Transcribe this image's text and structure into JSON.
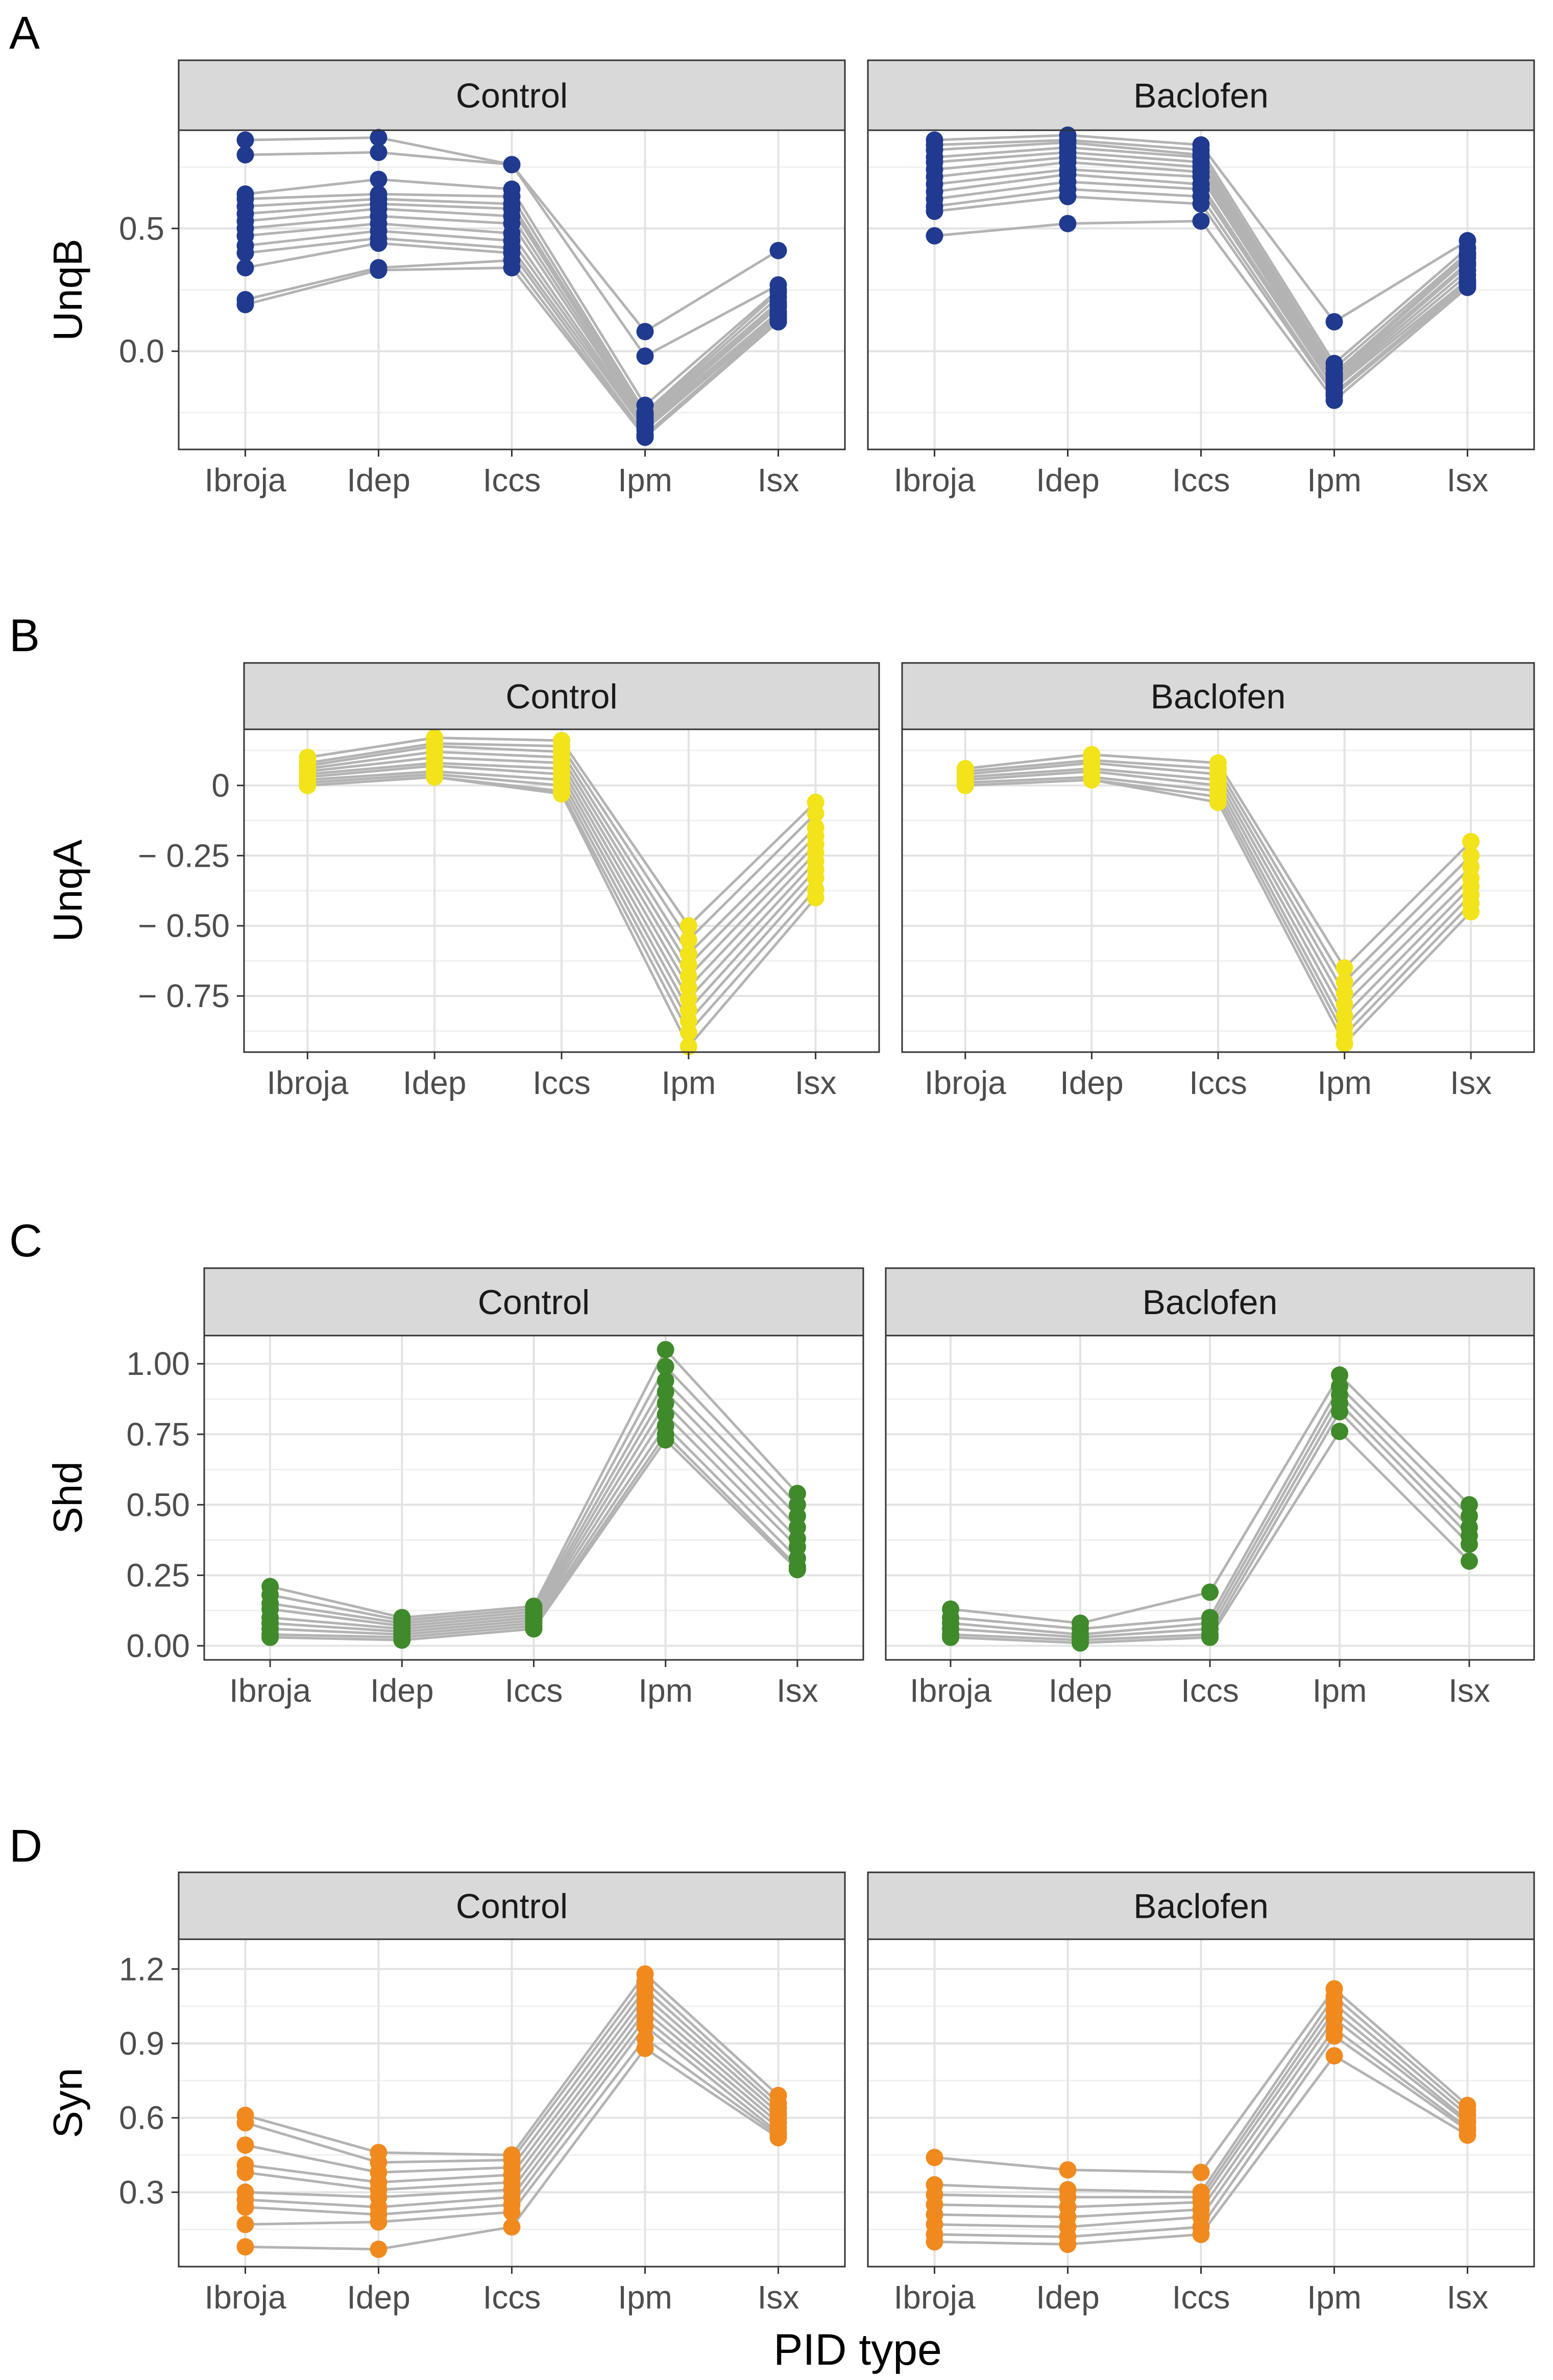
{
  "figure": {
    "x_axis_title": "PID type",
    "panels": [
      {
        "letter": "A",
        "ylabel": "UnqB"
      },
      {
        "letter": "B",
        "ylabel": "UnqA"
      },
      {
        "letter": "C",
        "ylabel": "Shd"
      },
      {
        "letter": "D",
        "ylabel": "Syn"
      }
    ]
  },
  "colors": {
    "UnqB": "#1f3a8f",
    "UnqA": "#f2e31a",
    "Shd": "#3f8a2a",
    "Syn": "#f08a1e",
    "lines": "#b3b3b3",
    "strip_bg": "#d9d9d9",
    "grid_major": "#e3e3e3",
    "grid_minor": "#f0f0f0"
  },
  "chart_data": [
    {
      "type": "line",
      "panel": "A",
      "ylabel": "UnqB",
      "xlabel": "PID type",
      "categories": [
        "Ibroja",
        "Idep",
        "Iccs",
        "Ipm",
        "Isx"
      ],
      "ylim": [
        -0.4,
        0.9
      ],
      "yticks": [
        0.0,
        0.5
      ],
      "ytick_labels": [
        "0.0",
        "0.5"
      ],
      "facets": [
        {
          "name": "Control",
          "series": [
            [
              0.86,
              0.87,
              0.76,
              0.08,
              0.41
            ],
            [
              0.8,
              0.81,
              0.76,
              -0.02,
              0.27
            ],
            [
              0.64,
              0.7,
              0.66,
              -0.22,
              0.25
            ],
            [
              0.62,
              0.64,
              0.63,
              -0.25,
              0.24
            ],
            [
              0.59,
              0.62,
              0.6,
              -0.26,
              0.22
            ],
            [
              0.56,
              0.6,
              0.58,
              -0.27,
              0.2
            ],
            [
              0.53,
              0.58,
              0.55,
              -0.28,
              0.19
            ],
            [
              0.5,
              0.55,
              0.52,
              -0.29,
              0.18
            ],
            [
              0.47,
              0.52,
              0.48,
              -0.3,
              0.16
            ],
            [
              0.43,
              0.49,
              0.45,
              -0.31,
              0.15
            ],
            [
              0.4,
              0.46,
              0.42,
              -0.32,
              0.14
            ],
            [
              0.34,
              0.44,
              0.4,
              -0.34,
              0.13
            ],
            [
              0.21,
              0.34,
              0.37,
              -0.35,
              0.12
            ],
            [
              0.19,
              0.33,
              0.34,
              -0.35,
              0.12
            ]
          ]
        },
        {
          "name": "Baclofen",
          "series": [
            [
              0.86,
              0.88,
              0.84,
              0.12,
              0.45
            ],
            [
              0.84,
              0.86,
              0.82,
              -0.05,
              0.42
            ],
            [
              0.82,
              0.85,
              0.8,
              -0.07,
              0.4
            ],
            [
              0.79,
              0.83,
              0.79,
              -0.09,
              0.39
            ],
            [
              0.77,
              0.81,
              0.77,
              -0.1,
              0.38
            ],
            [
              0.74,
              0.79,
              0.75,
              -0.11,
              0.36
            ],
            [
              0.71,
              0.77,
              0.73,
              -0.12,
              0.35
            ],
            [
              0.68,
              0.74,
              0.71,
              -0.13,
              0.33
            ],
            [
              0.65,
              0.72,
              0.68,
              -0.14,
              0.31
            ],
            [
              0.62,
              0.69,
              0.66,
              -0.15,
              0.29
            ],
            [
              0.59,
              0.66,
              0.63,
              -0.17,
              0.28
            ],
            [
              0.57,
              0.63,
              0.6,
              -0.18,
              0.27
            ],
            [
              0.47,
              0.52,
              0.53,
              -0.2,
              0.26
            ]
          ]
        }
      ]
    },
    {
      "type": "line",
      "panel": "B",
      "ylabel": "UnqA",
      "xlabel": "PID type",
      "categories": [
        "Ibroja",
        "Idep",
        "Iccs",
        "Ipm",
        "Isx"
      ],
      "ylim": [
        -0.95,
        0.2
      ],
      "yticks": [
        0.0,
        -0.25,
        -0.5,
        -0.75
      ],
      "ytick_labels": [
        "0",
        "− 0.25",
        "− 0.50",
        "− 0.75"
      ],
      "facets": [
        {
          "name": "Control",
          "series": [
            [
              0.1,
              0.17,
              0.16,
              -0.5,
              -0.06
            ],
            [
              0.08,
              0.15,
              0.14,
              -0.55,
              -0.1
            ],
            [
              0.07,
              0.14,
              0.12,
              -0.6,
              -0.15
            ],
            [
              0.06,
              0.12,
              0.1,
              -0.64,
              -0.18
            ],
            [
              0.05,
              0.1,
              0.08,
              -0.68,
              -0.21
            ],
            [
              0.04,
              0.08,
              0.06,
              -0.72,
              -0.24
            ],
            [
              0.03,
              0.07,
              0.04,
              -0.76,
              -0.27
            ],
            [
              0.02,
              0.05,
              0.02,
              -0.8,
              -0.3
            ],
            [
              0.01,
              0.04,
              0.0,
              -0.84,
              -0.33
            ],
            [
              0.0,
              0.03,
              -0.02,
              -0.88,
              -0.37
            ],
            [
              0.0,
              0.03,
              -0.03,
              -0.93,
              -0.4
            ]
          ]
        },
        {
          "name": "Baclofen",
          "series": [
            [
              0.06,
              0.11,
              0.08,
              -0.65,
              -0.2
            ],
            [
              0.05,
              0.09,
              0.06,
              -0.7,
              -0.25
            ],
            [
              0.04,
              0.08,
              0.04,
              -0.74,
              -0.29
            ],
            [
              0.03,
              0.06,
              0.02,
              -0.78,
              -0.33
            ],
            [
              0.02,
              0.05,
              0.0,
              -0.82,
              -0.36
            ],
            [
              0.01,
              0.03,
              -0.02,
              -0.86,
              -0.39
            ],
            [
              0.0,
              0.02,
              -0.04,
              -0.89,
              -0.42
            ],
            [
              0.0,
              0.02,
              -0.06,
              -0.92,
              -0.45
            ]
          ]
        }
      ]
    },
    {
      "type": "line",
      "panel": "C",
      "ylabel": "Shd",
      "xlabel": "PID type",
      "categories": [
        "Ibroja",
        "Idep",
        "Iccs",
        "Ipm",
        "Isx"
      ],
      "ylim": [
        -0.05,
        1.1
      ],
      "yticks": [
        0.0,
        0.25,
        0.5,
        0.75,
        1.0
      ],
      "ytick_labels": [
        "0.00",
        "0.25",
        "0.50",
        "0.75",
        "1.00"
      ],
      "facets": [
        {
          "name": "Control",
          "series": [
            [
              0.21,
              0.1,
              0.14,
              1.05,
              0.54
            ],
            [
              0.18,
              0.09,
              0.13,
              0.99,
              0.5
            ],
            [
              0.15,
              0.08,
              0.12,
              0.94,
              0.46
            ],
            [
              0.13,
              0.07,
              0.11,
              0.9,
              0.42
            ],
            [
              0.1,
              0.06,
              0.1,
              0.86,
              0.38
            ],
            [
              0.08,
              0.05,
              0.09,
              0.82,
              0.35
            ],
            [
              0.06,
              0.04,
              0.08,
              0.78,
              0.31
            ],
            [
              0.04,
              0.03,
              0.07,
              0.75,
              0.28
            ],
            [
              0.03,
              0.02,
              0.06,
              0.73,
              0.27
            ]
          ]
        },
        {
          "name": "Baclofen",
          "series": [
            [
              0.13,
              0.08,
              0.19,
              0.96,
              0.5
            ],
            [
              0.1,
              0.06,
              0.1,
              0.92,
              0.46
            ],
            [
              0.08,
              0.04,
              0.08,
              0.89,
              0.42
            ],
            [
              0.06,
              0.03,
              0.06,
              0.86,
              0.39
            ],
            [
              0.04,
              0.02,
              0.04,
              0.83,
              0.36
            ],
            [
              0.03,
              0.01,
              0.03,
              0.76,
              0.3
            ]
          ]
        }
      ]
    },
    {
      "type": "line",
      "panel": "D",
      "ylabel": "Syn",
      "xlabel": "PID type",
      "categories": [
        "Ibroja",
        "Idep",
        "Iccs",
        "Ipm",
        "Isx"
      ],
      "ylim": [
        0.0,
        1.32
      ],
      "yticks": [
        0.3,
        0.6,
        0.9,
        1.2
      ],
      "ytick_labels": [
        "0.3",
        "0.6",
        "0.9",
        "1.2"
      ],
      "facets": [
        {
          "name": "Control",
          "series": [
            [
              0.61,
              0.46,
              0.45,
              1.18,
              0.69
            ],
            [
              0.58,
              0.42,
              0.43,
              1.15,
              0.66
            ],
            [
              0.49,
              0.38,
              0.4,
              1.12,
              0.64
            ],
            [
              0.41,
              0.34,
              0.37,
              1.09,
              0.62
            ],
            [
              0.38,
              0.31,
              0.34,
              1.06,
              0.6
            ],
            [
              0.3,
              0.28,
              0.31,
              1.03,
              0.58
            ],
            [
              0.27,
              0.24,
              0.28,
              1.0,
              0.56
            ],
            [
              0.24,
              0.21,
              0.25,
              0.97,
              0.54
            ],
            [
              0.17,
              0.18,
              0.22,
              0.92,
              0.53
            ],
            [
              0.08,
              0.07,
              0.16,
              0.88,
              0.52
            ]
          ]
        },
        {
          "name": "Baclofen",
          "series": [
            [
              0.44,
              0.39,
              0.38,
              1.12,
              0.65
            ],
            [
              0.33,
              0.31,
              0.3,
              1.09,
              0.63
            ],
            [
              0.29,
              0.28,
              0.28,
              1.06,
              0.61
            ],
            [
              0.25,
              0.24,
              0.26,
              1.03,
              0.59
            ],
            [
              0.21,
              0.2,
              0.23,
              1.0,
              0.58
            ],
            [
              0.17,
              0.16,
              0.2,
              0.96,
              0.56
            ],
            [
              0.13,
              0.12,
              0.16,
              0.93,
              0.55
            ],
            [
              0.1,
              0.09,
              0.13,
              0.85,
              0.53
            ]
          ]
        }
      ]
    }
  ]
}
